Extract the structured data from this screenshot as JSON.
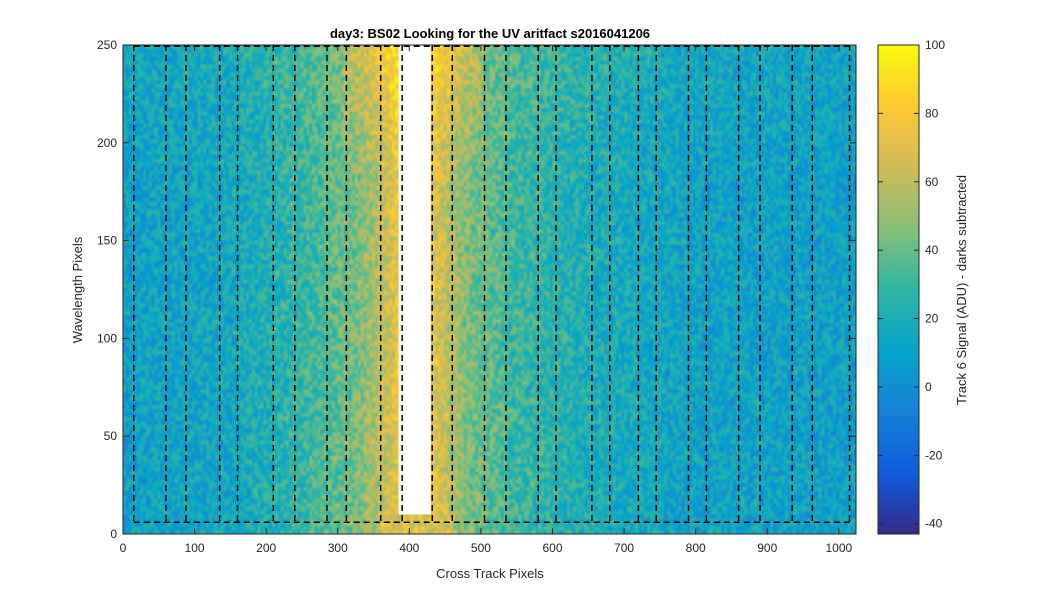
{
  "chart_data": {
    "type": "heatmap",
    "title": "day3: BS02  Looking for the UV aritfact  s2016041206",
    "xlabel": "Cross Track Pixels",
    "ylabel": "Wavelength Pixels",
    "colorbar_label": "Track 6 Signal (ADU) - darks subtracted",
    "xlim": [
      0,
      1024
    ],
    "ylim": [
      0,
      250
    ],
    "clim": [
      -43,
      100
    ],
    "x_ticks": [
      0,
      100,
      200,
      300,
      400,
      500,
      600,
      700,
      800,
      900,
      1000
    ],
    "y_ticks": [
      0,
      50,
      100,
      150,
      200,
      250
    ],
    "colorbar_ticks": [
      -40,
      -20,
      0,
      20,
      40,
      60,
      80,
      100
    ],
    "colormap": "parula",
    "colormap_stops": [
      "#352a87",
      "#0f5cdd",
      "#1481d6",
      "#06a4ca",
      "#2eb7a4",
      "#87bf77",
      "#d1bb59",
      "#fec832",
      "#f9fb0e"
    ],
    "saturated_band": {
      "x_range": [
        385,
        430
      ],
      "y_range": [
        10,
        250
      ],
      "color": "#ffffff"
    },
    "dashed_lines_x": [
      15,
      60,
      88,
      135,
      160,
      210,
      240,
      285,
      312,
      360,
      390,
      432,
      460,
      505,
      535,
      580,
      605,
      655,
      680,
      720,
      745,
      790,
      815,
      860,
      890,
      935,
      963,
      1015
    ],
    "dashed_top_y": 250,
    "dashed_bottom_y": 6,
    "dashed_color": "#000000",
    "signal_profile": [
      {
        "x": 0,
        "v": 10
      },
      {
        "x": 150,
        "v": 15
      },
      {
        "x": 250,
        "v": 28
      },
      {
        "x": 330,
        "v": 45
      },
      {
        "x": 370,
        "v": 65
      },
      {
        "x": 385,
        "v": 75
      },
      {
        "x": 430,
        "v": 75
      },
      {
        "x": 445,
        "v": 65
      },
      {
        "x": 480,
        "v": 45
      },
      {
        "x": 550,
        "v": 30
      },
      {
        "x": 650,
        "v": 20
      },
      {
        "x": 800,
        "v": 12
      },
      {
        "x": 1024,
        "v": 10
      }
    ]
  }
}
